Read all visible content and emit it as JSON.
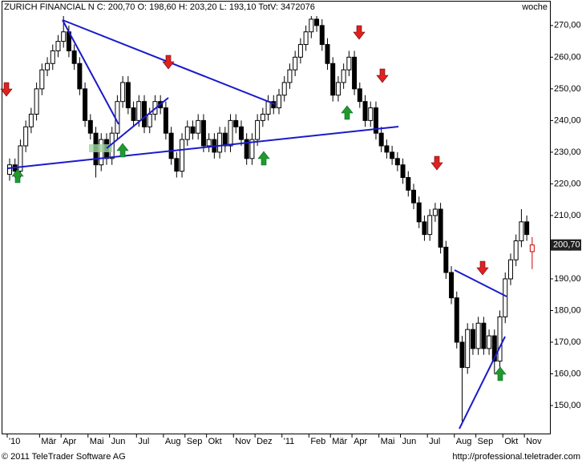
{
  "chart_data": {
    "type": "candlestick",
    "title": "ZURICH FINANCIAL N C: 200,70 O: 198,60 H: 203,20 L: 193,10 TotV: 3472076",
    "period": "woche",
    "footer_left": "© 2011 TeleTrader Software AG",
    "footer_right": "http://professional.teletrader.com",
    "last_label": "200,70",
    "last_value": 200.7,
    "up_color": "#ffffff",
    "down_color": "#000000",
    "last_color": "#cc0000",
    "ylim": [
      141.4,
      273.5
    ],
    "yticks": [
      {
        "value": 150,
        "label": "150,00"
      },
      {
        "value": 160,
        "label": "160,00"
      },
      {
        "value": 170,
        "label": "170,00"
      },
      {
        "value": 180,
        "label": "180,00"
      },
      {
        "value": 190,
        "label": "190,00"
      },
      {
        "value": 200,
        "label": "200,00"
      },
      {
        "value": 210,
        "label": "210,00"
      },
      {
        "value": 220,
        "label": "220,00"
      },
      {
        "value": 230,
        "label": "230,00"
      },
      {
        "value": 240,
        "label": "240,00"
      },
      {
        "value": 250,
        "label": "250,00"
      },
      {
        "value": 260,
        "label": "260,00"
      },
      {
        "value": 270,
        "label": "270,00"
      }
    ],
    "xticks": [
      {
        "value": 0,
        "label": "'10"
      },
      {
        "value": 6,
        "label": "Mär"
      },
      {
        "value": 10,
        "label": "Apr"
      },
      {
        "value": 15,
        "label": "Mai"
      },
      {
        "value": 19,
        "label": "Jun"
      },
      {
        "value": 24,
        "label": "Jul"
      },
      {
        "value": 29,
        "label": "Aug"
      },
      {
        "value": 33,
        "label": "Sep"
      },
      {
        "value": 37,
        "label": "Okt"
      },
      {
        "value": 42,
        "label": "Nov"
      },
      {
        "value": 46,
        "label": "Dez"
      },
      {
        "value": 51,
        "label": "'11"
      },
      {
        "value": 56,
        "label": "Feb"
      },
      {
        "value": 60,
        "label": "Mär"
      },
      {
        "value": 64,
        "label": "Apr"
      },
      {
        "value": 69,
        "label": "Mai"
      },
      {
        "value": 73,
        "label": "Jun"
      },
      {
        "value": 78,
        "label": "Jul"
      },
      {
        "value": 83,
        "label": "Aug"
      },
      {
        "value": 87,
        "label": "Sep"
      },
      {
        "value": 92,
        "label": "Okt"
      },
      {
        "value": 96,
        "label": "Nov"
      }
    ],
    "open": [
      223,
      226,
      224,
      232,
      238,
      242,
      250,
      256,
      258,
      262,
      265,
      268,
      262,
      258,
      250,
      240,
      236,
      226,
      234,
      228,
      236,
      246,
      252,
      244,
      240,
      246,
      238,
      242,
      246,
      244,
      236,
      228,
      224,
      234,
      238,
      236,
      240,
      232,
      234,
      230,
      236,
      232,
      240,
      238,
      234,
      228,
      234,
      240,
      242,
      246,
      244,
      248,
      252,
      256,
      260,
      264,
      268,
      272,
      270,
      264,
      258,
      248,
      252,
      256,
      260,
      250,
      246,
      240,
      244,
      236,
      232,
      230,
      228,
      226,
      222,
      218,
      214,
      208,
      204,
      210,
      212,
      200,
      192,
      184,
      170,
      162,
      174,
      168,
      176,
      168,
      172,
      164,
      178,
      190,
      196,
      202,
      208,
      198.6
    ],
    "high": [
      228,
      228,
      234,
      240,
      244,
      252,
      258,
      260,
      264,
      267,
      273,
      270,
      264,
      260,
      252,
      242,
      238,
      236,
      236,
      238,
      248,
      254,
      254,
      246,
      248,
      248,
      244,
      248,
      248,
      246,
      238,
      230,
      236,
      240,
      240,
      242,
      242,
      236,
      236,
      238,
      238,
      242,
      242,
      240,
      236,
      236,
      242,
      244,
      248,
      248,
      250,
      254,
      258,
      262,
      266,
      270,
      273,
      273,
      272,
      266,
      260,
      254,
      258,
      262,
      262,
      252,
      248,
      246,
      246,
      238,
      234,
      232,
      230,
      228,
      224,
      220,
      216,
      210,
      212,
      214,
      214,
      202,
      194,
      186,
      172,
      176,
      176,
      178,
      178,
      174,
      174,
      180,
      192,
      198,
      204,
      212,
      210,
      203.2
    ],
    "low": [
      221,
      222,
      222,
      230,
      236,
      240,
      248,
      254,
      256,
      260,
      263,
      260,
      256,
      248,
      238,
      234,
      222,
      224,
      226,
      226,
      234,
      244,
      242,
      238,
      238,
      236,
      236,
      240,
      242,
      234,
      226,
      222,
      222,
      232,
      234,
      234,
      230,
      230,
      228,
      228,
      230,
      230,
      236,
      232,
      226,
      226,
      232,
      238,
      240,
      242,
      242,
      246,
      250,
      254,
      258,
      262,
      266,
      268,
      262,
      256,
      246,
      246,
      250,
      254,
      248,
      244,
      238,
      238,
      234,
      230,
      228,
      226,
      224,
      220,
      216,
      212,
      206,
      202,
      202,
      208,
      198,
      190,
      182,
      168,
      145,
      160,
      166,
      166,
      166,
      166,
      160,
      162,
      176,
      188,
      194,
      200,
      202,
      193.1
    ],
    "close": [
      226,
      224,
      232,
      238,
      242,
      250,
      256,
      258,
      262,
      265,
      268,
      262,
      258,
      250,
      240,
      236,
      226,
      234,
      228,
      236,
      246,
      252,
      244,
      240,
      246,
      238,
      242,
      246,
      244,
      236,
      228,
      224,
      234,
      238,
      236,
      240,
      232,
      234,
      230,
      236,
      232,
      240,
      238,
      234,
      228,
      234,
      240,
      242,
      246,
      244,
      248,
      252,
      256,
      260,
      264,
      268,
      272,
      270,
      264,
      258,
      248,
      252,
      256,
      260,
      250,
      246,
      240,
      244,
      236,
      232,
      230,
      228,
      226,
      222,
      218,
      214,
      208,
      204,
      210,
      212,
      200,
      192,
      184,
      170,
      162,
      174,
      168,
      176,
      168,
      172,
      164,
      178,
      190,
      196,
      202,
      208,
      204,
      200.7
    ]
  }
}
